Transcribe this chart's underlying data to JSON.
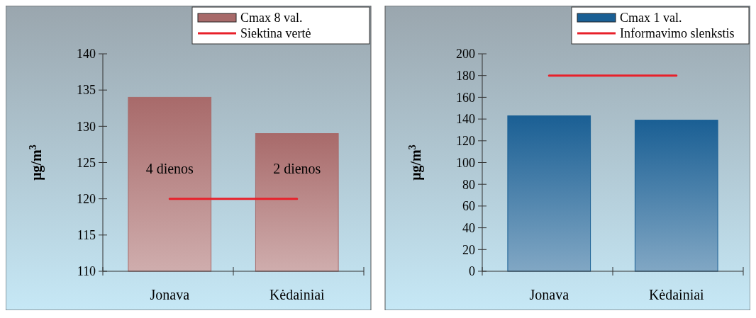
{
  "chart_data": [
    {
      "type": "bar",
      "ylabel": "μg/m$^{3}$",
      "categories": [
        "Jonava",
        "Kėdainiai"
      ],
      "ylim": [
        110,
        140
      ],
      "yticks": [
        110,
        115,
        120,
        125,
        130,
        135,
        140
      ],
      "legend": "top right",
      "grid": false,
      "series": [
        {
          "name": "Cmax 8 val.",
          "color": "#a86a6a",
          "values": [
            134,
            129
          ]
        },
        {
          "name": "Siektina vertė",
          "type": "line",
          "color": "#e8202a",
          "values": [
            120,
            120
          ]
        }
      ],
      "annotations": [
        "4 dienos",
        "2 dienos"
      ]
    },
    {
      "type": "bar",
      "ylabel": "μg/m$^{3}$",
      "categories": [
        "Jonava",
        "Kėdainiai"
      ],
      "ylim": [
        0,
        200
      ],
      "yticks": [
        0,
        20,
        40,
        60,
        80,
        100,
        120,
        140,
        160,
        180,
        200
      ],
      "legend": "top right",
      "grid": false,
      "series": [
        {
          "name": "Cmax 1 val.",
          "color": "#1a5f94",
          "values": [
            143,
            139
          ]
        },
        {
          "name": "Informavimo slenkstis",
          "type": "line",
          "color": "#e8202a",
          "values": [
            180,
            180
          ]
        }
      ]
    }
  ]
}
